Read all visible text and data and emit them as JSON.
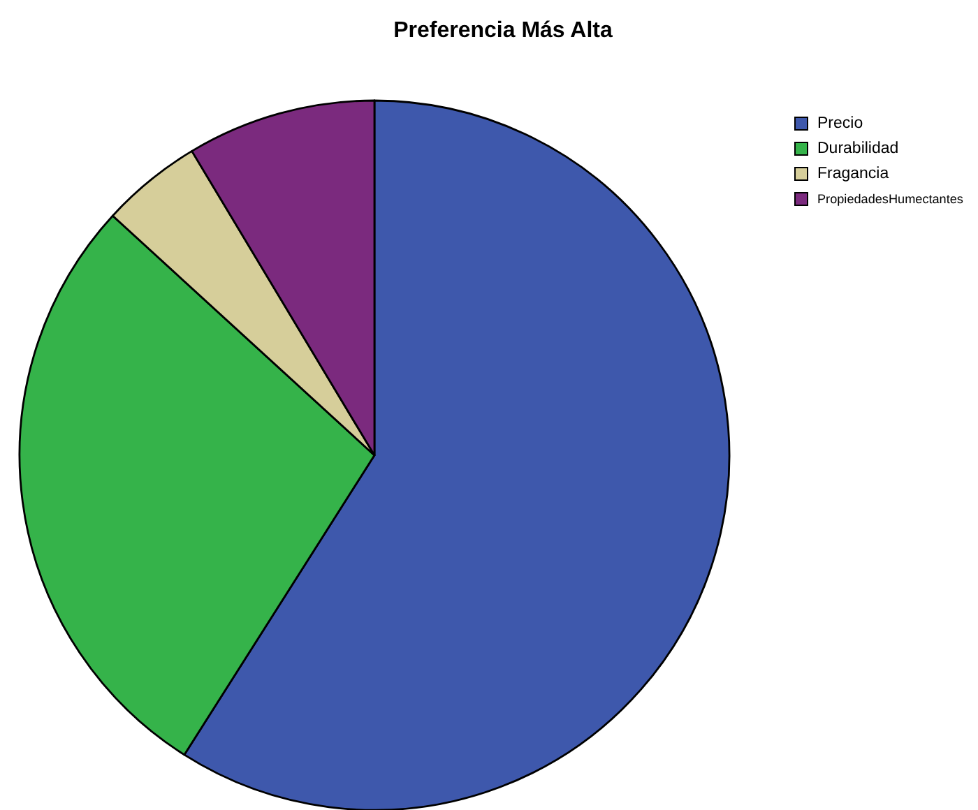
{
  "chart_data": {
    "type": "pie",
    "title": "Preferencia Más Alta",
    "categories": [
      "Precio",
      "Durabilidad",
      "Fragancia",
      "PropiedadesHumectantes"
    ],
    "values": [
      59,
      27.8,
      4.6,
      8.6
    ],
    "colors": [
      "#3e58ac",
      "#35b34a",
      "#d6ce9a",
      "#7b2a7e"
    ],
    "legend": "top right"
  }
}
